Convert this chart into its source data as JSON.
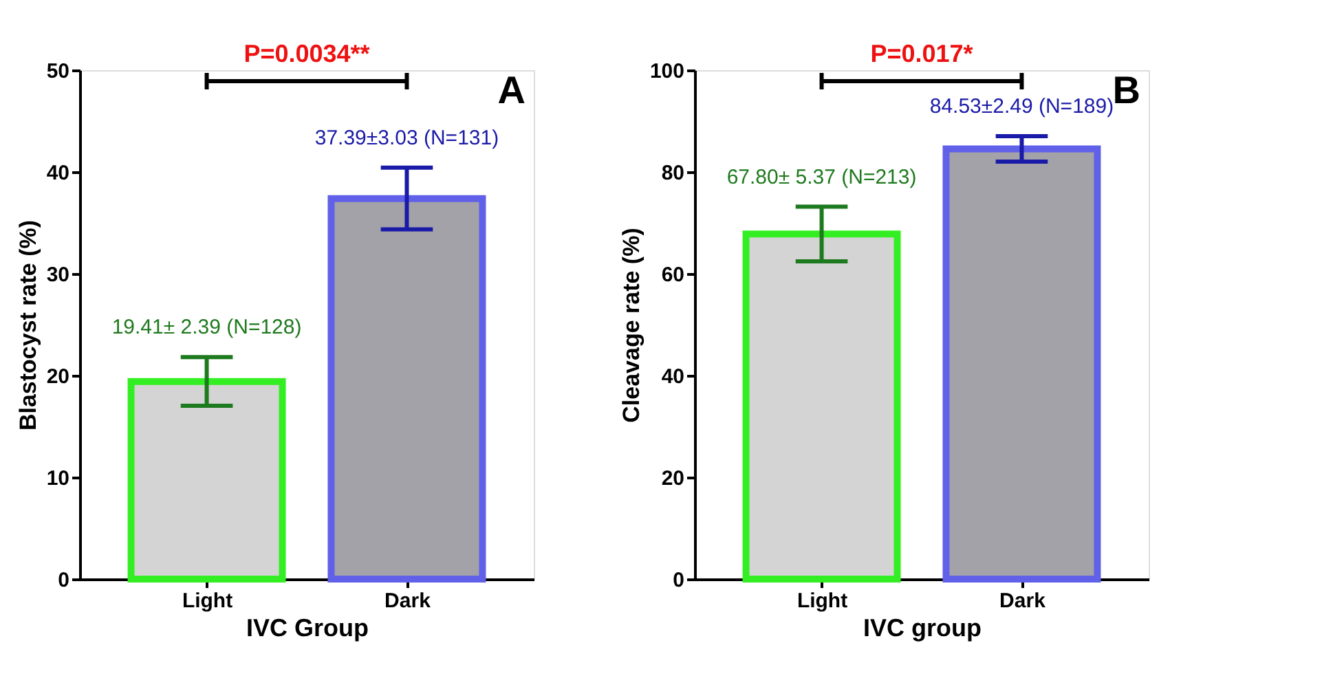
{
  "chart_data": [
    {
      "type": "bar",
      "title": "A",
      "xlabel": "IVC Group",
      "ylabel": "Blastocyst rate (%)",
      "categories": [
        "Light",
        "Dark"
      ],
      "values": [
        19.41,
        37.39
      ],
      "errors": [
        2.39,
        3.03
      ],
      "colors": [
        "#d4d4d4",
        "#a3a2a8"
      ],
      "value_labels": [
        "19.41± 2.39 (N=128)",
        "37.39±3.03 (N=131)"
      ],
      "ylim": [
        0,
        50
      ],
      "yticks": [
        0,
        10,
        20,
        30,
        40,
        50
      ],
      "annotations": [
        "P=0.0034**"
      ],
      "grid": false
    },
    {
      "type": "bar",
      "title": "B",
      "xlabel": "IVC group",
      "ylabel": "Cleavage rate (%)",
      "categories": [
        "Light",
        "Dark"
      ],
      "values": [
        67.8,
        84.53
      ],
      "errors": [
        5.37,
        2.49
      ],
      "colors": [
        "#d4d4d4",
        "#a3a2a8"
      ],
      "value_labels": [
        "67.80± 5.37 (N=213)",
        "84.53±2.49 (N=189)"
      ],
      "ylim": [
        0,
        100
      ],
      "yticks": [
        0,
        20,
        40,
        60,
        80,
        100
      ],
      "annotations": [
        "P=0.017*"
      ],
      "grid": false
    }
  ]
}
